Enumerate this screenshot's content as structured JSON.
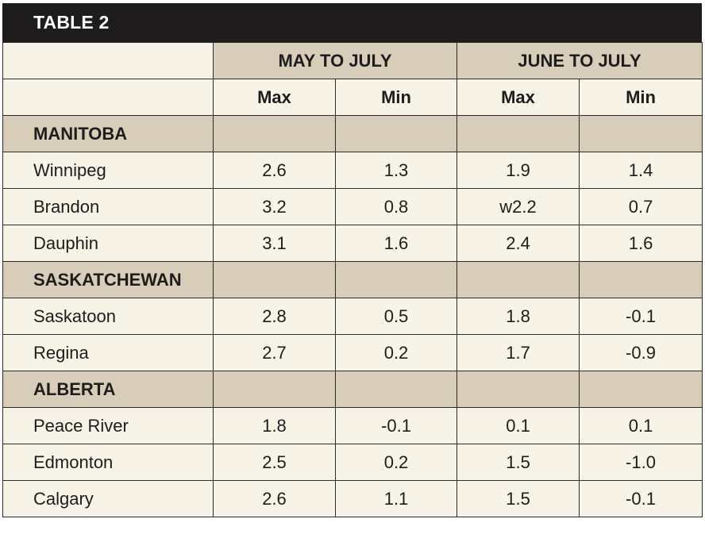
{
  "title": "TABLE 2",
  "groups": [
    "MAY TO JULY",
    "JUNE TO JULY"
  ],
  "subheaders": [
    "Max",
    "Min",
    "Max",
    "Min"
  ],
  "sections": [
    {
      "name": "MANITOBA",
      "rows": [
        {
          "label": "Winnipeg",
          "values": [
            "2.6",
            "1.3",
            "1.9",
            "1.4"
          ]
        },
        {
          "label": "Brandon",
          "values": [
            "3.2",
            "0.8",
            "w2.2",
            "0.7"
          ]
        },
        {
          "label": "Dauphin",
          "values": [
            "3.1",
            "1.6",
            "2.4",
            "1.6"
          ]
        }
      ]
    },
    {
      "name": "SASKATCHEWAN",
      "rows": [
        {
          "label": "Saskatoon",
          "values": [
            "2.8",
            "0.5",
            "1.8",
            "-0.1"
          ]
        },
        {
          "label": "Regina",
          "values": [
            "2.7",
            "0.2",
            "1.7",
            "-0.9"
          ]
        }
      ]
    },
    {
      "name": "ALBERTA",
      "rows": [
        {
          "label": "Peace River",
          "values": [
            "1.8",
            "-0.1",
            "0.1",
            "0.1"
          ]
        },
        {
          "label": "Edmonton",
          "values": [
            "2.5",
            "0.2",
            "1.5",
            "-1.0"
          ]
        },
        {
          "label": "Calgary",
          "values": [
            "2.6",
            "1.1",
            "1.5",
            "-0.1"
          ]
        }
      ]
    }
  ]
}
